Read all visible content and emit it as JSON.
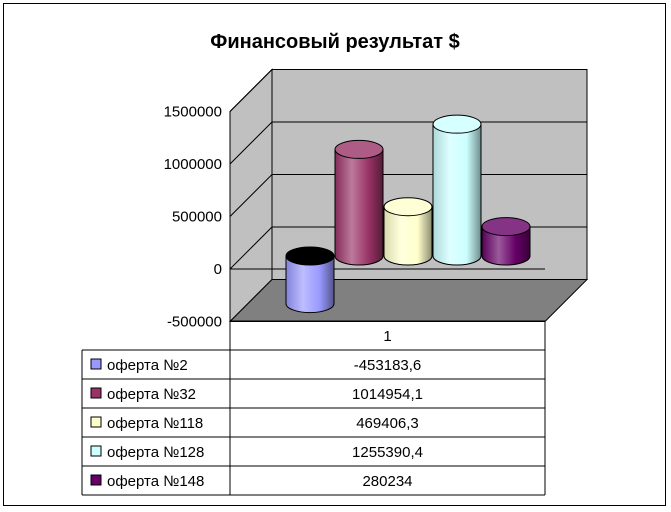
{
  "chart_data": {
    "type": "bar",
    "title": "Финансовый результат $",
    "categories": [
      "1"
    ],
    "ylim": [
      -500000,
      1500000
    ],
    "yticks": [
      "-500000",
      "0",
      "500000",
      "1000000",
      "1500000"
    ],
    "grid": true,
    "legend_placement": "table-left",
    "series": [
      {
        "name": "оферта №2",
        "value": -453183.6,
        "label": "-453183,6",
        "color": "#9999ff"
      },
      {
        "name": "оферта №32",
        "value": 1014954.1,
        "label": "1014954,1",
        "color": "#993366"
      },
      {
        "name": "оферта №118",
        "value": 469406.3,
        "label": "469406,3",
        "color": "#ffffcc"
      },
      {
        "name": "оферта №128",
        "value": 1255390.4,
        "label": "1255390,4",
        "color": "#ccffff"
      },
      {
        "name": "оферта №148",
        "value": 280234,
        "label": "280234",
        "color": "#660066"
      }
    ]
  }
}
